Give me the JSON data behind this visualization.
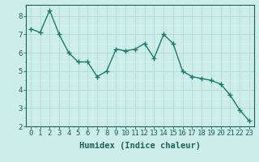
{
  "x": [
    0,
    1,
    2,
    3,
    4,
    5,
    6,
    7,
    8,
    9,
    10,
    11,
    12,
    13,
    14,
    15,
    16,
    17,
    18,
    19,
    20,
    21,
    22,
    23
  ],
  "y": [
    7.3,
    7.1,
    8.3,
    7.0,
    6.0,
    5.5,
    5.5,
    4.7,
    5.0,
    6.2,
    6.1,
    6.2,
    6.5,
    5.7,
    7.0,
    6.5,
    5.0,
    4.7,
    4.6,
    4.5,
    4.3,
    3.7,
    2.9,
    2.3
  ],
  "line_color": "#1a7a6e",
  "marker": "+",
  "bg_color": "#cdeee8",
  "grid_major_color": "#b8ddd6",
  "grid_minor_color": "#d8f0eb",
  "xlabel": "Humidex (Indice chaleur)",
  "ylim": [
    2,
    8.6
  ],
  "xlim": [
    -0.5,
    23.5
  ],
  "yticks": [
    2,
    3,
    4,
    5,
    6,
    7,
    8
  ],
  "xticks": [
    0,
    1,
    2,
    3,
    4,
    5,
    6,
    7,
    8,
    9,
    10,
    11,
    12,
    13,
    14,
    15,
    16,
    17,
    18,
    19,
    20,
    21,
    22,
    23
  ],
  "xlabel_fontsize": 7.5,
  "tick_fontsize": 6.5,
  "axis_color": "#1a6060",
  "spine_color": "#1a6060",
  "line_width": 1.0,
  "marker_size": 4
}
